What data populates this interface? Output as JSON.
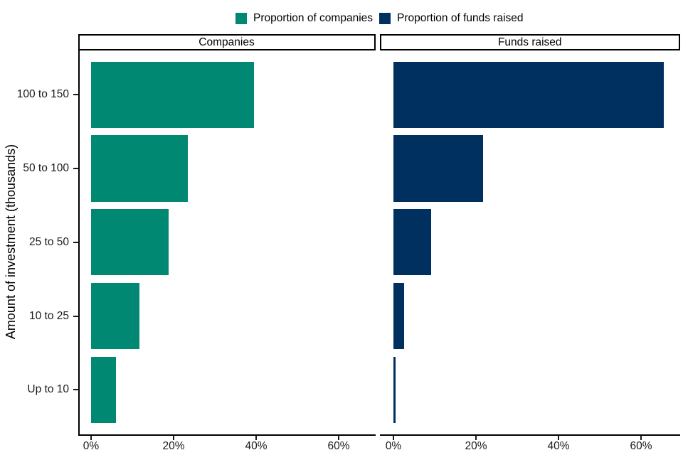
{
  "chart_data": {
    "type": "bar",
    "orientation": "horizontal",
    "title": "",
    "xlabel": "",
    "ylabel": "Amount of investment (thousands)",
    "categories": [
      "100 to 150",
      "50 to 100",
      "25 to 50",
      "10 to 25",
      "Up to 10"
    ],
    "x_ticks_pct": [
      0,
      20,
      40,
      60
    ],
    "x_tick_labels": [
      "0%",
      "20%",
      "40%",
      "60%"
    ],
    "xlim_pct": [
      0,
      69
    ],
    "grid": false,
    "legend_position": "top",
    "facets": [
      {
        "strip_label": "Companies",
        "series": "Proportion of companies",
        "color": "#008873",
        "values_pct": [
          39.4,
          23.4,
          18.8,
          11.7,
          6.0
        ]
      },
      {
        "strip_label": "Funds raised",
        "series": "Proportion of funds raised",
        "color": "#00305F",
        "values_pct": [
          65.5,
          21.7,
          9.1,
          2.6,
          0.5
        ]
      }
    ]
  }
}
